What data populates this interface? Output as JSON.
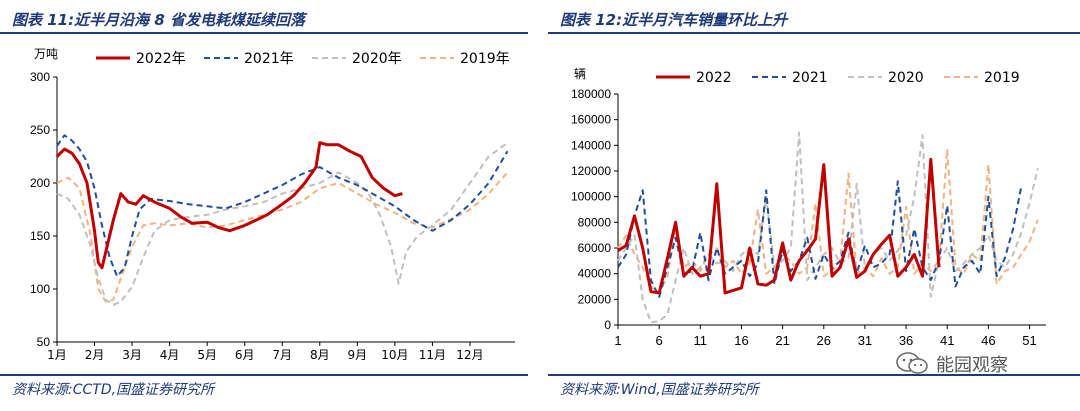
{
  "left": {
    "title": "图表 11:近半月沿海 8 省发电耗煤延续回落",
    "source": "资料来源:CCTD,国盛证券研究所"
  },
  "right": {
    "title": "图表 12:近半月汽车销量环比上升",
    "source": "资料来源:Wind,国盛证券研究所"
  },
  "watermark": {
    "text": "能园观察",
    "icon": "wechat-icon"
  },
  "colors": {
    "2022": "#c00000",
    "2021": "#1f4e9a",
    "2020": "#bfbfbf",
    "2019": "#f4b183",
    "title": "#1f3a7a"
  },
  "chart_data": [
    {
      "type": "line",
      "title": "近半月沿海 8 省发电耗煤延续回落",
      "ylabel": "万吨",
      "ylim": [
        50,
        300
      ],
      "yticks": [
        50,
        100,
        150,
        200,
        250,
        300
      ],
      "xlim": [
        1,
        13.2
      ],
      "categories": [
        "1月",
        "2月",
        "3月",
        "4月",
        "5月",
        "6月",
        "7月",
        "8月",
        "9月",
        "10月",
        "11月",
        "12月"
      ],
      "legend": [
        "2022年",
        "2021年",
        "2020年",
        "2019年"
      ],
      "legend_position": "top",
      "series": [
        {
          "name": "2022年",
          "style": "solid",
          "x": [
            1,
            1.2,
            1.4,
            1.6,
            1.8,
            2,
            2.1,
            2.2,
            2.3,
            2.5,
            2.7,
            2.9,
            3.1,
            3.3,
            3.6,
            4,
            4.3,
            4.6,
            5,
            5.3,
            5.6,
            6,
            6.3,
            6.6,
            7,
            7.3,
            7.6,
            7.9,
            8,
            8.2,
            8.5,
            8.8,
            9.1,
            9.4,
            9.7,
            10,
            10.2
          ],
          "y": [
            225,
            232,
            228,
            218,
            200,
            155,
            125,
            120,
            135,
            165,
            190,
            182,
            180,
            188,
            182,
            176,
            168,
            162,
            163,
            158,
            155,
            160,
            165,
            170,
            180,
            188,
            200,
            215,
            238,
            236,
            236,
            230,
            225,
            205,
            195,
            188,
            190
          ]
        },
        {
          "name": "2021年",
          "style": "dashed",
          "x": [
            1,
            1.2,
            1.4,
            1.6,
            1.8,
            2,
            2.2,
            2.4,
            2.6,
            2.8,
            3,
            3.2,
            3.5,
            4,
            4.5,
            5,
            5.5,
            6,
            6.5,
            7,
            7.5,
            8,
            8.5,
            9,
            9.5,
            10,
            10.5,
            11,
            11.5,
            12,
            12.5,
            13
          ],
          "y": [
            235,
            245,
            240,
            232,
            220,
            195,
            160,
            130,
            112,
            120,
            150,
            175,
            185,
            183,
            180,
            178,
            176,
            182,
            190,
            198,
            208,
            215,
            205,
            198,
            188,
            178,
            165,
            155,
            165,
            180,
            200,
            230
          ]
        },
        {
          "name": "2020年",
          "style": "dashed",
          "x": [
            1,
            1.3,
            1.6,
            1.9,
            2.1,
            2.3,
            2.5,
            2.7,
            3,
            3.3,
            3.6,
            4,
            4.5,
            5,
            5.5,
            6,
            6.5,
            7,
            7.5,
            8,
            8.5,
            9,
            9.3,
            9.6,
            9.9,
            10.1,
            10.3,
            10.6,
            11,
            11.5,
            12,
            12.5,
            13
          ],
          "y": [
            190,
            185,
            170,
            140,
            110,
            90,
            85,
            88,
            102,
            130,
            155,
            165,
            168,
            170,
            175,
            178,
            182,
            190,
            195,
            200,
            210,
            200,
            190,
            170,
            140,
            105,
            135,
            150,
            160,
            175,
            200,
            225,
            238
          ]
        },
        {
          "name": "2019年",
          "style": "dashed",
          "x": [
            1,
            1.3,
            1.6,
            1.9,
            2.1,
            2.3,
            2.5,
            2.7,
            3,
            3.3,
            3.6,
            4,
            4.5,
            5,
            5.5,
            6,
            6.5,
            7,
            7.5,
            8,
            8.5,
            9,
            9.5,
            10,
            10.5,
            11,
            11.5,
            12,
            12.5,
            13
          ],
          "y": [
            200,
            205,
            195,
            150,
            100,
            88,
            90,
            110,
            140,
            160,
            162,
            160,
            162,
            158,
            160,
            165,
            170,
            175,
            182,
            195,
            200,
            190,
            180,
            172,
            162,
            158,
            166,
            175,
            190,
            210
          ]
        }
      ]
    },
    {
      "type": "line",
      "title": "近半月汽车销量环比上升",
      "ylabel": "辆",
      "ylim": [
        0,
        180000
      ],
      "yticks": [
        0,
        20000,
        40000,
        60000,
        80000,
        100000,
        120000,
        140000,
        160000,
        180000
      ],
      "xlim": [
        1,
        53
      ],
      "xticks": [
        1,
        6,
        11,
        16,
        21,
        26,
        31,
        36,
        41,
        46,
        51
      ],
      "legend": [
        "2022",
        "2021",
        "2020",
        "2019"
      ],
      "legend_position": "top",
      "series": [
        {
          "name": "2022",
          "style": "solid",
          "x": [
            1,
            2,
            3,
            4,
            5,
            6,
            7,
            8,
            9,
            10,
            11,
            12,
            13,
            14,
            15,
            16,
            17,
            18,
            19,
            20,
            21,
            22,
            23,
            24,
            25,
            26,
            27,
            28,
            29,
            30,
            31,
            32,
            33,
            34,
            35,
            36,
            37,
            38,
            39,
            40
          ],
          "y": [
            58000,
            62000,
            85000,
            60000,
            26000,
            25000,
            52000,
            80000,
            38000,
            45000,
            38000,
            40000,
            110000,
            25000,
            27000,
            29000,
            60000,
            32000,
            31000,
            35000,
            64000,
            35000,
            50000,
            58000,
            67000,
            125000,
            38000,
            45000,
            67000,
            37000,
            42000,
            55000,
            63000,
            70000,
            38000,
            45000,
            55000,
            38000,
            129000,
            45000
          ]
        },
        {
          "name": "2021",
          "style": "dashed",
          "x": [
            1,
            2,
            3,
            4,
            5,
            6,
            7,
            8,
            9,
            10,
            11,
            12,
            13,
            14,
            15,
            16,
            17,
            18,
            19,
            20,
            21,
            22,
            23,
            24,
            25,
            26,
            27,
            28,
            29,
            30,
            31,
            32,
            33,
            34,
            35,
            36,
            37,
            38,
            39,
            40,
            41,
            42,
            43,
            44,
            45,
            46,
            47,
            48,
            49,
            50
          ],
          "y": [
            45000,
            55000,
            85000,
            105000,
            35000,
            22000,
            45000,
            68000,
            40000,
            42000,
            72000,
            35000,
            60000,
            40000,
            45000,
            50000,
            38000,
            48000,
            105000,
            32000,
            58000,
            42000,
            50000,
            68000,
            36000,
            55000,
            44000,
            50000,
            72000,
            40000,
            62000,
            45000,
            48000,
            55000,
            112000,
            42000,
            75000,
            45000,
            35000,
            50000,
            93000,
            30000,
            45000,
            50000,
            40000,
            100000,
            38000,
            52000,
            75000,
            108000
          ]
        },
        {
          "name": "2020",
          "style": "dashed",
          "x": [
            1,
            2,
            3,
            4,
            5,
            6,
            7,
            8,
            9,
            10,
            11,
            12,
            13,
            14,
            15,
            16,
            17,
            18,
            19,
            20,
            21,
            22,
            23,
            24,
            25,
            26,
            27,
            28,
            29,
            30,
            31,
            32,
            33,
            34,
            35,
            36,
            37,
            38,
            39,
            40,
            41,
            42,
            43,
            44,
            45,
            46,
            47,
            48,
            49,
            50,
            51,
            52
          ],
          "y": [
            50000,
            60000,
            70000,
            20000,
            2000,
            3000,
            8000,
            35000,
            60000,
            40000,
            45000,
            55000,
            48000,
            50000,
            42000,
            55000,
            60000,
            55000,
            100000,
            45000,
            50000,
            60000,
            150000,
            35000,
            45000,
            55000,
            60000,
            48000,
            52000,
            110000,
            45000,
            55000,
            60000,
            50000,
            58000,
            70000,
            100000,
            148000,
            22000,
            50000,
            60000,
            42000,
            48000,
            55000,
            60000,
            70000,
            50000,
            45000,
            55000,
            72000,
            95000,
            122000
          ]
        },
        {
          "name": "2019",
          "style": "dashed",
          "x": [
            1,
            2,
            3,
            4,
            5,
            6,
            7,
            8,
            9,
            10,
            11,
            12,
            13,
            14,
            15,
            16,
            17,
            18,
            19,
            20,
            21,
            22,
            23,
            24,
            25,
            26,
            27,
            28,
            29,
            30,
            31,
            32,
            33,
            34,
            35,
            36,
            37,
            38,
            39,
            40,
            41,
            42,
            43,
            44,
            45,
            46,
            47,
            48,
            49,
            50,
            51,
            52
          ],
          "y": [
            60000,
            70000,
            55000,
            45000,
            30000,
            25000,
            38000,
            75000,
            45000,
            50000,
            42000,
            55000,
            60000,
            45000,
            50000,
            40000,
            48000,
            90000,
            40000,
            45000,
            55000,
            50000,
            40000,
            45000,
            95000,
            38000,
            42000,
            50000,
            118000,
            40000,
            45000,
            38000,
            52000,
            40000,
            45000,
            92000,
            40000,
            48000,
            42000,
            50000,
            137000,
            45000,
            40000,
            55000,
            50000,
            125000,
            32000,
            42000,
            45000,
            55000,
            65000,
            82000
          ]
        }
      ]
    }
  ]
}
